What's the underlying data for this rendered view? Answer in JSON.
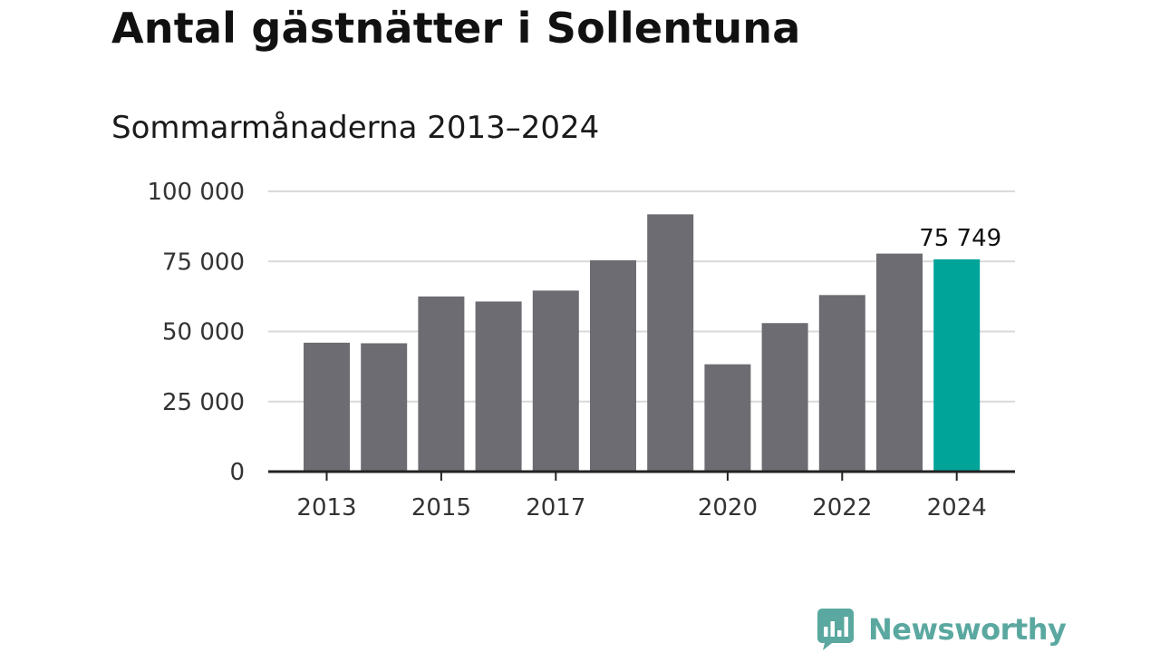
{
  "header": {
    "title": "Antal gästnätter i Sollentuna",
    "subtitle": "Sommarmånaderna 2013–2024"
  },
  "brand": {
    "name": "Newsworthy",
    "color": "#5aa8a0",
    "icon": "bar-chart-speech-bubble-icon"
  },
  "colors": {
    "bar": "#6d6c72",
    "highlight": "#00a499",
    "grid": "#d9d9d9",
    "axis": "#222222"
  },
  "chart_data": {
    "type": "bar",
    "categories": [
      "2013",
      "2014",
      "2015",
      "2016",
      "2017",
      "2018",
      "2019",
      "2020",
      "2021",
      "2022",
      "2023",
      "2024"
    ],
    "values": [
      46000,
      45800,
      62500,
      60700,
      64600,
      75400,
      91800,
      38300,
      53000,
      63000,
      77800,
      75749
    ],
    "highlight_index": 11,
    "data_labels": [
      {
        "index": 11,
        "text": "75 749"
      }
    ],
    "x_tick_labels": [
      "2013",
      "",
      "2015",
      "",
      "2017",
      "",
      "",
      "2020",
      "",
      "2022",
      "",
      "2024"
    ],
    "y_ticks": [
      0,
      25000,
      50000,
      75000,
      100000
    ],
    "y_tick_labels": [
      "0",
      "25 000",
      "50 000",
      "75 000",
      "100 000"
    ],
    "ylim": [
      0,
      100000
    ],
    "title": "Antal gästnätter i Sollentuna",
    "subtitle": "Sommarmånaderna 2013–2024",
    "xlabel": "",
    "ylabel": "",
    "grid": true,
    "legend": "none"
  }
}
